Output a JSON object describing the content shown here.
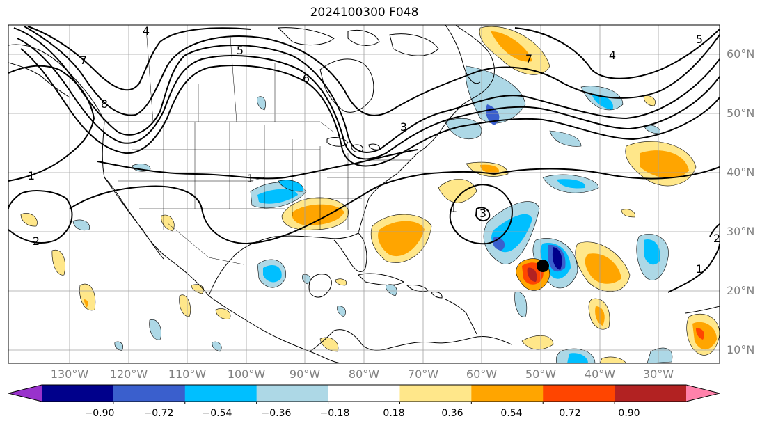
{
  "title": "2024100300 F048",
  "map": {
    "lat_labels": [
      "60°N",
      "50°N",
      "40°N",
      "30°N",
      "20°N",
      "10°N"
    ],
    "lon_labels": [
      "130°W",
      "120°W",
      "110°W",
      "100°W",
      "90°W",
      "80°W",
      "70°W",
      "60°W",
      "50°W",
      "40°W",
      "30°W"
    ],
    "contour_labels": [
      "4",
      "5",
      "6",
      "7",
      "8",
      "1",
      "1",
      "2",
      "3",
      "2",
      "1",
      "5",
      "4",
      "7",
      "1",
      "3"
    ],
    "marker": "storm-center-dot"
  },
  "colorbar": {
    "ticks": [
      "−0.90",
      "−0.72",
      "−0.54",
      "−0.36",
      "−0.18",
      "0.18",
      "0.36",
      "0.54",
      "0.72",
      "0.90"
    ],
    "colors": [
      "#9932cc",
      "#00008b",
      "#3a5fcd",
      "#00bfff",
      "#add8e6",
      "#ffffff",
      "#ffe78a",
      "#ffa500",
      "#ff4500",
      "#b22222",
      "#ff82ab"
    ]
  }
}
